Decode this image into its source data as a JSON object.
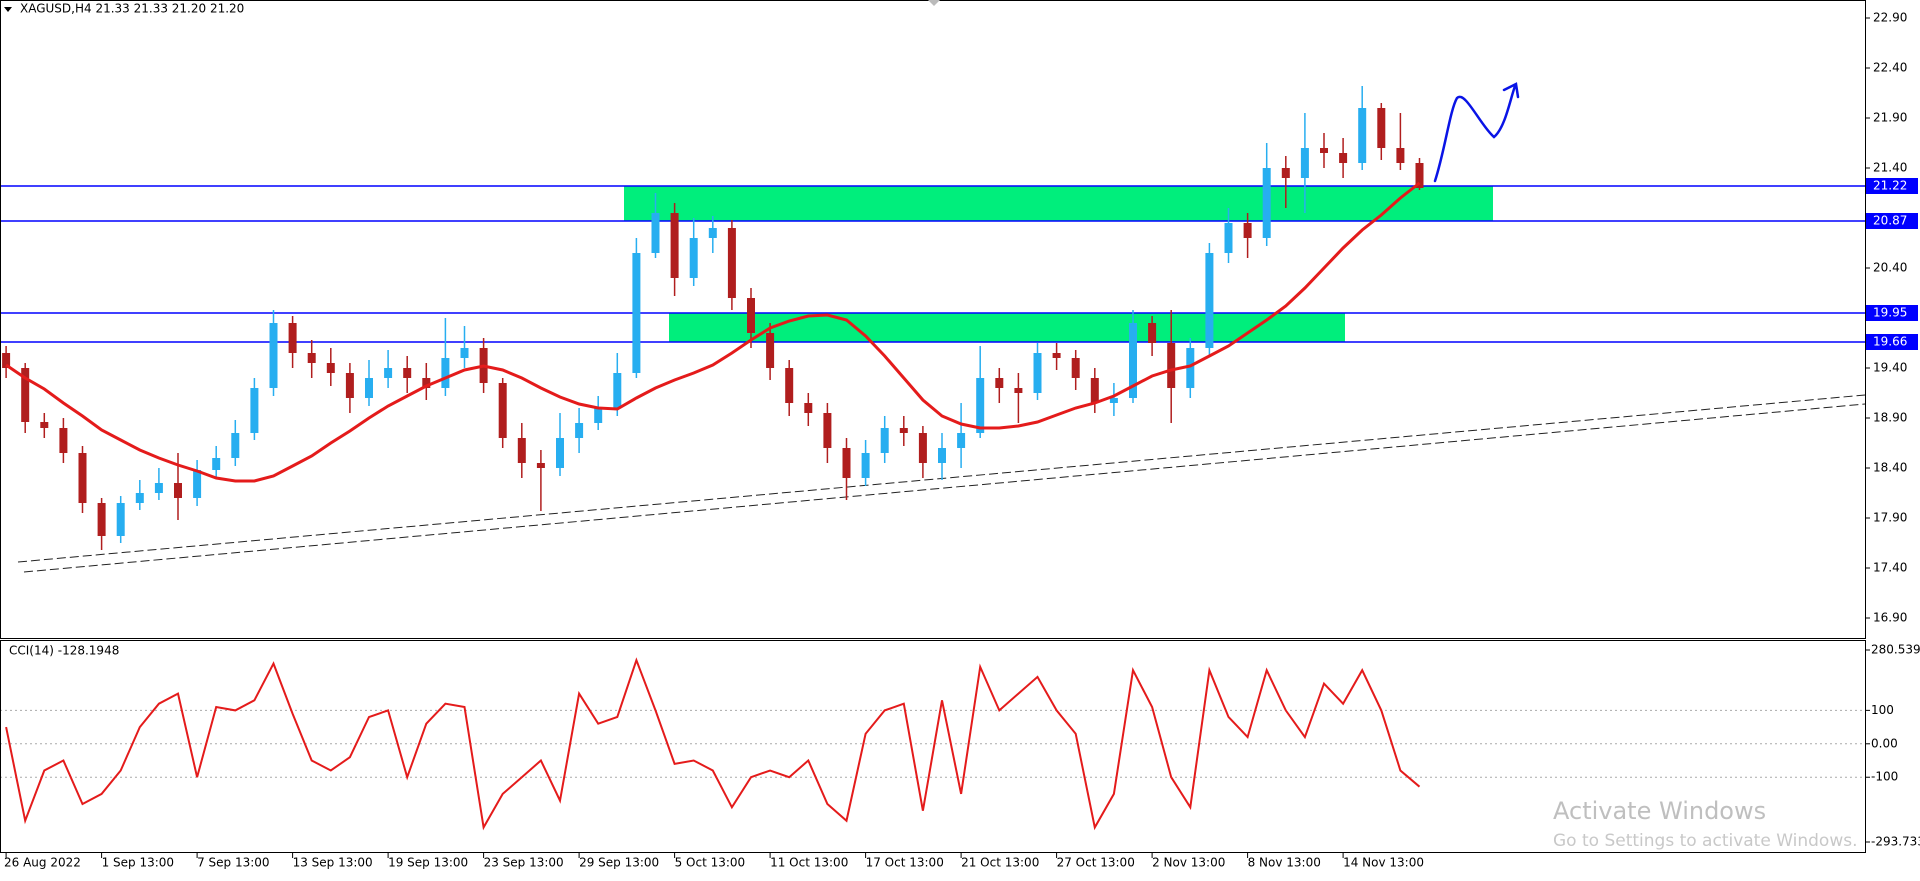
{
  "chart_data": [
    {
      "type": "candlestick",
      "title": "XAGUSD,H4  21.33 21.33 21.20 21.20",
      "categories": [
        "26 Aug 2022",
        null,
        null,
        null,
        null,
        "1 Sep 13:00",
        null,
        null,
        null,
        null,
        "7 Sep 13:00",
        null,
        null,
        null,
        null,
        "13 Sep 13:00",
        null,
        null,
        null,
        null,
        "19 Sep 13:00",
        null,
        null,
        null,
        null,
        "23 Sep 13:00",
        null,
        null,
        null,
        null,
        "29 Sep 13:00",
        null,
        null,
        null,
        null,
        "5 Oct 13:00",
        null,
        null,
        null,
        null,
        "11 Oct 13:00",
        null,
        null,
        null,
        null,
        "17 Oct 13:00",
        null,
        null,
        null,
        null,
        "21 Oct 13:00",
        null,
        null,
        null,
        null,
        "27 Oct 13:00",
        null,
        null,
        null,
        null,
        "2 Nov 13:00",
        null,
        null,
        null,
        null,
        "8 Nov 13:00",
        null,
        null,
        null,
        null,
        "14 Nov 13:00",
        null,
        null,
        null,
        null
      ],
      "open": [
        19.55,
        19.4,
        18.86,
        18.8,
        18.55,
        18.05,
        17.72,
        18.05,
        18.15,
        18.25,
        18.1,
        18.38,
        18.5,
        18.75,
        19.2,
        19.85,
        19.55,
        19.45,
        19.35,
        19.1,
        19.3,
        19.4,
        19.3,
        19.2,
        19.5,
        19.6,
        19.25,
        18.7,
        18.45,
        18.4,
        18.7,
        18.85,
        19.0,
        19.35,
        20.55,
        20.95,
        20.3,
        20.7,
        20.8,
        20.1,
        19.75,
        19.4,
        19.05,
        18.95,
        18.6,
        18.3,
        18.55,
        18.8,
        18.75,
        18.45,
        18.6,
        18.75,
        19.3,
        19.2,
        19.15,
        19.55,
        19.5,
        19.3,
        19.05,
        19.1,
        19.85,
        19.65,
        19.2,
        19.6,
        20.55,
        20.85,
        20.7,
        21.4,
        21.3,
        21.6,
        21.55,
        21.45,
        22.0,
        21.6,
        21.45
      ],
      "high": [
        19.62,
        19.45,
        18.95,
        18.9,
        18.62,
        18.1,
        18.12,
        18.28,
        18.4,
        18.55,
        18.48,
        18.62,
        18.88,
        19.3,
        19.98,
        19.92,
        19.68,
        19.6,
        19.45,
        19.48,
        19.58,
        19.52,
        19.45,
        19.9,
        19.82,
        19.7,
        19.3,
        18.85,
        18.58,
        18.95,
        19.0,
        19.12,
        19.55,
        20.7,
        21.15,
        21.05,
        20.9,
        20.92,
        20.88,
        20.2,
        19.85,
        19.48,
        19.15,
        19.05,
        18.7,
        18.68,
        18.92,
        18.92,
        18.82,
        18.75,
        19.05,
        19.62,
        19.4,
        19.35,
        19.65,
        19.65,
        19.58,
        19.4,
        19.25,
        19.98,
        19.92,
        19.98,
        19.7,
        20.65,
        21.0,
        20.95,
        21.65,
        21.52,
        21.95,
        21.75,
        21.7,
        22.22,
        22.05,
        21.95,
        21.5
      ],
      "low": [
        19.3,
        18.75,
        18.7,
        18.45,
        17.95,
        17.58,
        17.65,
        17.98,
        18.08,
        17.88,
        18.02,
        18.3,
        18.42,
        18.68,
        19.12,
        19.4,
        19.3,
        19.22,
        18.95,
        19.02,
        19.2,
        19.15,
        19.08,
        19.12,
        19.4,
        19.15,
        18.6,
        18.3,
        17.97,
        18.32,
        18.55,
        18.78,
        18.92,
        19.3,
        20.5,
        20.12,
        20.22,
        20.55,
        19.98,
        19.6,
        19.28,
        18.92,
        18.82,
        18.45,
        18.08,
        18.22,
        18.45,
        18.62,
        18.3,
        18.28,
        18.4,
        18.7,
        19.05,
        18.85,
        19.08,
        19.38,
        19.18,
        18.95,
        18.92,
        19.05,
        19.52,
        18.85,
        19.1,
        19.52,
        20.45,
        20.5,
        20.62,
        21.0,
        20.95,
        21.4,
        21.3,
        21.38,
        21.48,
        21.38,
        21.18
      ],
      "close": [
        19.4,
        18.86,
        18.8,
        18.55,
        18.05,
        17.72,
        18.05,
        18.15,
        18.25,
        18.1,
        18.38,
        18.5,
        18.75,
        19.2,
        19.85,
        19.55,
        19.45,
        19.35,
        19.1,
        19.3,
        19.4,
        19.3,
        19.2,
        19.5,
        19.6,
        19.25,
        18.7,
        18.45,
        18.4,
        18.7,
        18.85,
        19.0,
        19.35,
        20.55,
        20.95,
        20.3,
        20.7,
        20.8,
        20.1,
        19.75,
        19.4,
        19.05,
        18.95,
        18.6,
        18.3,
        18.55,
        18.8,
        18.75,
        18.45,
        18.6,
        18.75,
        19.3,
        19.2,
        19.15,
        19.55,
        19.5,
        19.3,
        19.05,
        19.1,
        19.85,
        19.65,
        19.2,
        19.6,
        20.55,
        20.85,
        20.7,
        21.4,
        21.3,
        21.6,
        21.55,
        21.45,
        22.0,
        21.6,
        21.45,
        21.2
      ],
      "up_color": "#27aef0",
      "down_color": "#b01e1e",
      "ma": {
        "color": "#e41b1b",
        "values": [
          19.43,
          19.3,
          19.19,
          19.05,
          18.92,
          18.78,
          18.68,
          18.58,
          18.5,
          18.43,
          18.37,
          18.3,
          18.27,
          18.27,
          18.32,
          18.42,
          18.52,
          18.65,
          18.77,
          18.9,
          19.02,
          19.12,
          19.22,
          19.3,
          19.38,
          19.42,
          19.38,
          19.3,
          19.2,
          19.11,
          19.04,
          19.0,
          18.99,
          19.1,
          19.2,
          19.28,
          19.35,
          19.43,
          19.55,
          19.68,
          19.8,
          19.87,
          19.92,
          19.93,
          19.88,
          19.72,
          19.52,
          19.3,
          19.08,
          18.92,
          18.84,
          18.8,
          18.8,
          18.82,
          18.86,
          18.93,
          19.0,
          19.05,
          19.12,
          19.22,
          19.32,
          19.38,
          19.42,
          19.52,
          19.62,
          19.75,
          19.88,
          20.02,
          20.2,
          20.4,
          20.6,
          20.78,
          20.93,
          21.1,
          21.25
        ]
      },
      "levels": [
        21.22,
        20.87,
        19.95,
        19.66
      ],
      "level_color": "#0000ff",
      "zone_color": "#00ee7c",
      "ylim": [
        16.7,
        23.08
      ],
      "yticks": [
        {
          "value": 22.9,
          "label": "22.90"
        },
        {
          "value": 22.4,
          "label": "22.40"
        },
        {
          "value": 21.9,
          "label": "21.90"
        },
        {
          "value": 21.4,
          "label": "21.40"
        },
        {
          "value": 20.4,
          "label": "20.40"
        },
        {
          "value": 19.4,
          "label": "19.40"
        },
        {
          "value": 18.9,
          "label": "18.90"
        },
        {
          "value": 18.4,
          "label": "18.40"
        },
        {
          "value": 17.9,
          "label": "17.90"
        },
        {
          "value": 17.4,
          "label": "17.40"
        },
        {
          "value": 16.9,
          "label": "16.90"
        }
      ]
    },
    {
      "type": "line",
      "title": "CCI(14) -128.1948",
      "color": "#e41b1b",
      "values": [
        50,
        -230,
        -80,
        -50,
        -180,
        -150,
        -80,
        50,
        120,
        150,
        -100,
        110,
        100,
        130,
        240,
        90,
        -50,
        -80,
        -40,
        80,
        100,
        -100,
        60,
        120,
        110,
        -250,
        -150,
        -100,
        -50,
        -170,
        150,
        60,
        80,
        250,
        100,
        -60,
        -50,
        -80,
        -190,
        -100,
        -80,
        -100,
        -50,
        -180,
        -230,
        30,
        100,
        120,
        -200,
        130,
        -150,
        230,
        100,
        150,
        200,
        100,
        30,
        -250,
        -150,
        220,
        110,
        -100,
        -190,
        220,
        80,
        20,
        220,
        100,
        20,
        180,
        120,
        220,
        100,
        -80,
        -128.1948
      ],
      "ylim": [
        -293.733,
        280.539
      ],
      "yticks": [
        280.539,
        100,
        {
          "value": 0,
          "label": "0.00"
        },
        -100,
        -293.733
      ]
    }
  ],
  "watermark": {
    "line1": "Activate Windows",
    "line2": "Go to Settings to activate Windows."
  }
}
